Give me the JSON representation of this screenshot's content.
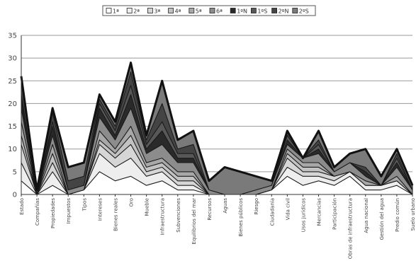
{
  "chart_data": {
    "type": "area",
    "stacked": true,
    "title": "",
    "xlabel": "",
    "ylabel": "",
    "ylim": [
      0,
      35
    ],
    "yticks": [
      0,
      5,
      10,
      15,
      20,
      25,
      30,
      35
    ],
    "grid": true,
    "legend_position": "top",
    "categories": [
      "Estado",
      "Compañías",
      "Propiedades",
      "Impuestos",
      "Tipos",
      "Intereses",
      "Bienes reales",
      "Oro",
      "Mueble",
      "Infraestructura",
      "Subvenciones",
      "Equilibrios del mar",
      "Recursos",
      "Aguas",
      "Bienes públicos",
      "Riesgo",
      "Ciudadanía",
      "Vida civil",
      "Usos jurídicos",
      "Mercancías",
      "Participación",
      "Obras de infraestructura",
      "Agua nacional",
      "Gestión del agua",
      "Predio común",
      "Suelo urbano"
    ],
    "series": [
      {
        "name": "1ª",
        "color": "#ffffff",
        "values": [
          3,
          0,
          2,
          0,
          1,
          5,
          3,
          4,
          2,
          3,
          1,
          1,
          0,
          0,
          0,
          0,
          1,
          4,
          2,
          3,
          2,
          4,
          1,
          1,
          2,
          0
        ]
      },
      {
        "name": "2ª",
        "color": "#eeeeee",
        "values": [
          4,
          0,
          3,
          0,
          0,
          4,
          3,
          4,
          2,
          2,
          1,
          1,
          0,
          0,
          0,
          0,
          0,
          2,
          2,
          1,
          1,
          1,
          1,
          1,
          1,
          0
        ]
      },
      {
        "name": "3ª",
        "color": "#d6d6d6",
        "values": [
          4,
          0,
          2,
          0,
          0,
          2,
          2,
          3,
          1,
          1,
          1,
          1,
          0,
          0,
          0,
          0,
          0,
          2,
          1,
          1,
          1,
          0,
          0,
          0,
          0,
          0
        ]
      },
      {
        "name": "4ª",
        "color": "#c2c2c2",
        "values": [
          2,
          0,
          2,
          0,
          0,
          1,
          1,
          2,
          1,
          1,
          1,
          1,
          0,
          0,
          0,
          0,
          0,
          1,
          1,
          1,
          0,
          0,
          0,
          0,
          0,
          0
        ]
      },
      {
        "name": "5ª",
        "color": "#a8a8a8",
        "values": [
          3,
          0,
          2,
          0,
          0,
          2,
          1,
          2,
          1,
          1,
          1,
          1,
          0,
          0,
          0,
          0,
          0,
          1,
          1,
          1,
          0,
          0,
          1,
          0,
          1,
          0
        ]
      },
      {
        "name": "6ª",
        "color": "#8c8c8c",
        "values": [
          3,
          0,
          2,
          1,
          1,
          3,
          2,
          4,
          2,
          3,
          2,
          2,
          1,
          0,
          0,
          1,
          1,
          1,
          1,
          2,
          1,
          2,
          1,
          0,
          2,
          1
        ]
      },
      {
        "name": "1ºN",
        "color": "#2a2a2a",
        "values": [
          2,
          0,
          2,
          0,
          0,
          2,
          1,
          3,
          1,
          3,
          1,
          1,
          0,
          0,
          0,
          0,
          0,
          1,
          0,
          1,
          0,
          0,
          1,
          0,
          1,
          0
        ]
      },
      {
        "name": "1ºS",
        "color": "#585858",
        "values": [
          1,
          0,
          1,
          0,
          0,
          1,
          1,
          2,
          1,
          2,
          1,
          1,
          0,
          0,
          0,
          0,
          0,
          1,
          0,
          1,
          0,
          0,
          0,
          0,
          1,
          0
        ]
      },
      {
        "name": "2ºN",
        "color": "#444444",
        "values": [
          3,
          0,
          2,
          2,
          2,
          1,
          1,
          3,
          1,
          4,
          1,
          2,
          0,
          0,
          0,
          0,
          0,
          1,
          0,
          1,
          0,
          0,
          1,
          0,
          1,
          0
        ]
      },
      {
        "name": "2ºS",
        "color": "#7a7a7a",
        "values": [
          1,
          1,
          1,
          3,
          3,
          1,
          1,
          2,
          1,
          5,
          2,
          3,
          2,
          6,
          5,
          3,
          1,
          0,
          0,
          2,
          1,
          2,
          4,
          2,
          1,
          1
        ]
      }
    ]
  }
}
